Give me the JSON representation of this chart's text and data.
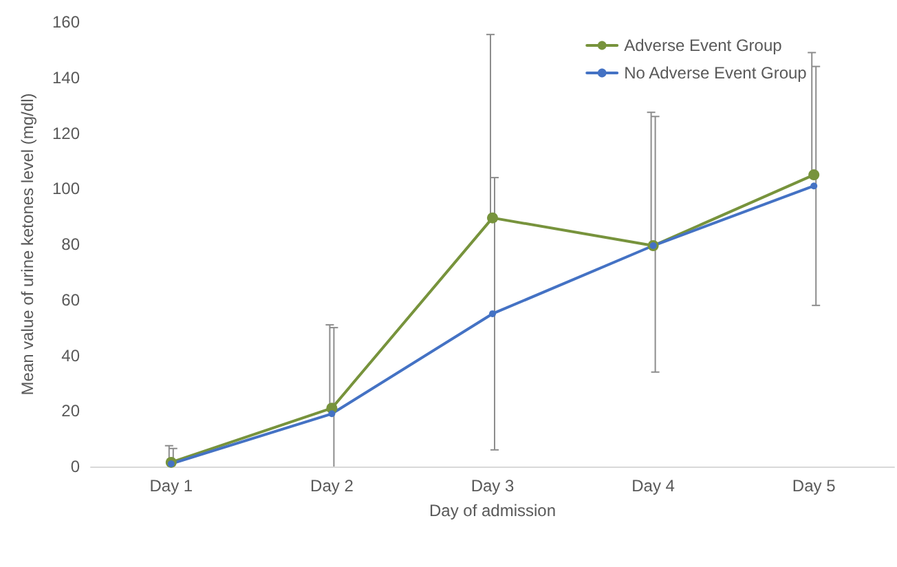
{
  "chart_data": {
    "type": "line",
    "xlabel": "Day of admission",
    "ylabel": "Mean value of urine ketones level (mg/dl)",
    "categories": [
      "Day 1",
      "Day 2",
      "Day 3",
      "Day 4",
      "Day 5"
    ],
    "series": [
      {
        "name": "Adverse Event Group",
        "color": "#77933c",
        "values": [
          1.5,
          21,
          89.5,
          79.5,
          105
        ],
        "errors": [
          [
            1.5,
            7.5
          ],
          [
            21,
            51
          ],
          [
            89.5,
            155.5
          ],
          [
            79.5,
            127.5
          ],
          [
            105,
            149
          ]
        ]
      },
      {
        "name": "No Adverse Event Group",
        "color": "#4472c4",
        "values": [
          1,
          19,
          55,
          79.5,
          101
        ],
        "errors": [
          [
            0,
            6.5
          ],
          [
            0,
            50
          ],
          [
            6,
            104
          ],
          [
            34,
            126
          ],
          [
            58,
            144
          ]
        ]
      }
    ],
    "ylim": [
      0,
      160
    ],
    "yticks": [
      0,
      20,
      40,
      60,
      80,
      100,
      120,
      140,
      160
    ],
    "grid": false,
    "legend": "top right",
    "marker": "circle",
    "line_style": "solid"
  }
}
